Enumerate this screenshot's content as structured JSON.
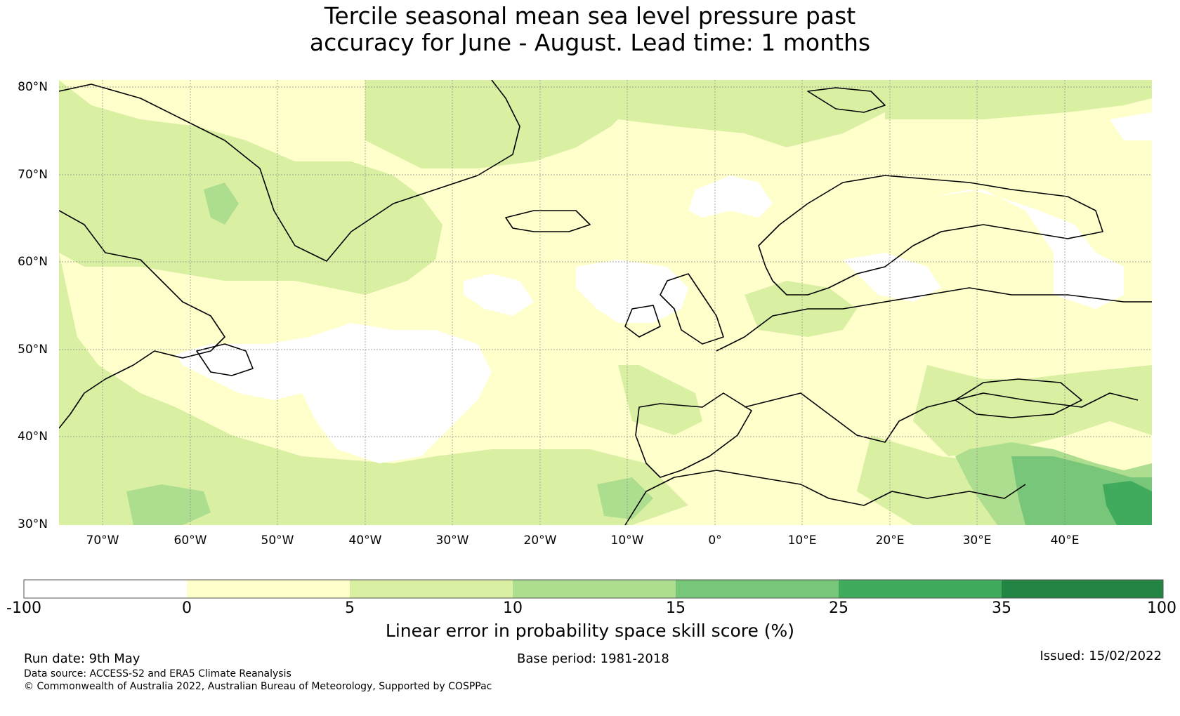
{
  "title": {
    "line1": "Tercile seasonal mean sea level pressure past",
    "line2": "accuracy for June - August. Lead time: 1 months"
  },
  "map": {
    "lat_labels": [
      "80°N",
      "70°N",
      "60°N",
      "50°N",
      "40°N",
      "30°N"
    ],
    "lon_labels": [
      "70°W",
      "60°W",
      "50°W",
      "40°W",
      "30°W",
      "20°W",
      "10°W",
      "0°",
      "10°E",
      "20°E",
      "30°E",
      "40°E"
    ],
    "lat_range": [
      30,
      81
    ],
    "lon_range": [
      -75,
      50
    ]
  },
  "colorbar": {
    "ticks": [
      "-100",
      "0",
      "5",
      "10",
      "15",
      "25",
      "35",
      "100"
    ],
    "colors": [
      "#ffffff",
      "#ffffcc",
      "#d9f0a3",
      "#addd8e",
      "#78c679",
      "#41ab5d",
      "#238443"
    ],
    "label": "Linear error in probability space skill score (%)"
  },
  "footer": {
    "run_date": "Run date: 9th May",
    "base_period": "Base period: 1981-2018",
    "issued": "Issued: 15/02/2022",
    "data_source": "Data source: ACCESS-S2 and ERA5 Climate Reanalysis",
    "copyright": "© Commonwealth of Australia 2022, Australian Bureau of Meteorology, Supported by COSPPac"
  }
}
